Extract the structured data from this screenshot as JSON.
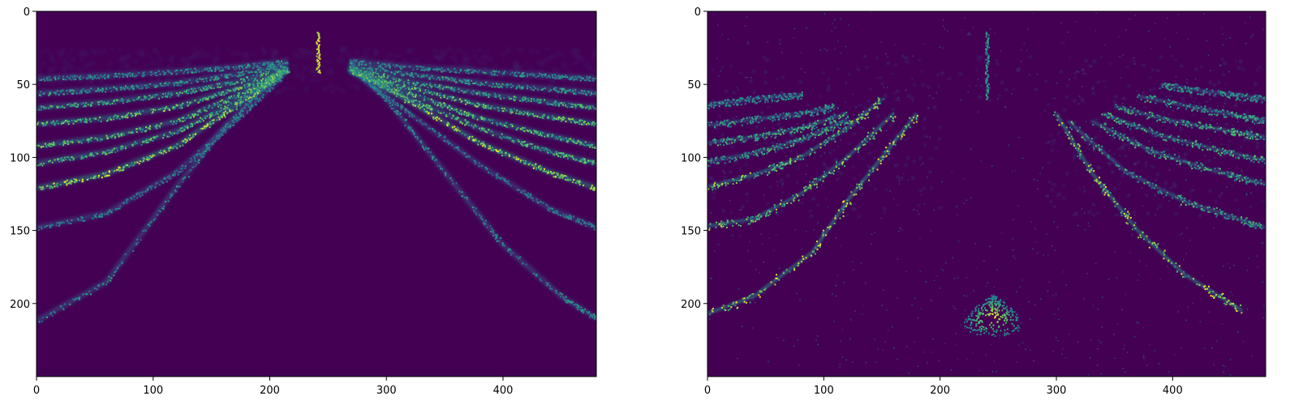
{
  "chart_data": [
    {
      "type": "heatmap",
      "colormap": "viridis",
      "background_color": "#440154",
      "bright_color": "#fde725",
      "mid_color": "#21918c",
      "xlim": [
        0,
        480
      ],
      "ylim": [
        250,
        0
      ],
      "y_inverted": true,
      "xticks": [
        0,
        100,
        200,
        300,
        400
      ],
      "yticks": [
        0,
        50,
        100,
        150,
        200
      ],
      "image_description": "dense smooth arcs radiating from top center; near-vertical bright streak at x≈240, y 15–40",
      "streak": {
        "x": 241,
        "y0": 14,
        "y1": 42
      },
      "arcs": [
        {
          "side": "left",
          "points": [
            [
              0,
              212
            ],
            [
              60,
              185
            ],
            [
              120,
              120
            ],
            [
              160,
              80
            ],
            [
              190,
              55
            ],
            [
              205,
              45
            ]
          ],
          "intensity": 0.55
        },
        {
          "side": "right",
          "points": [
            [
              280,
              45
            ],
            [
              300,
              60
            ],
            [
              340,
              100
            ],
            [
              400,
              160
            ],
            [
              450,
              195
            ],
            [
              480,
              210
            ]
          ],
          "intensity": 0.55
        },
        {
          "side": "left",
          "points": [
            [
              0,
              148
            ],
            [
              60,
              138
            ],
            [
              120,
              110
            ],
            [
              170,
              75
            ],
            [
              210,
              45
            ]
          ],
          "intensity": 0.5
        },
        {
          "side": "right",
          "points": [
            [
              270,
              40
            ],
            [
              320,
              70
            ],
            [
              380,
              105
            ],
            [
              440,
              135
            ],
            [
              480,
              148
            ]
          ],
          "intensity": 0.5
        },
        {
          "side": "left",
          "points": [
            [
              0,
              121
            ],
            [
              60,
              111
            ],
            [
              120,
              92
            ],
            [
              170,
              65
            ],
            [
              215,
              40
            ]
          ],
          "intensity": 0.95
        },
        {
          "side": "right",
          "points": [
            [
              268,
              38
            ],
            [
              320,
              62
            ],
            [
              380,
              90
            ],
            [
              440,
              110
            ],
            [
              480,
              121
            ]
          ],
          "intensity": 0.95
        },
        {
          "side": "left",
          "points": [
            [
              0,
              104
            ],
            [
              60,
              96
            ],
            [
              120,
              82
            ],
            [
              170,
              62
            ],
            [
              215,
              40
            ]
          ],
          "intensity": 0.75
        },
        {
          "side": "right",
          "points": [
            [
              268,
              40
            ],
            [
              320,
              60
            ],
            [
              380,
              80
            ],
            [
              440,
              96
            ],
            [
              480,
              104
            ]
          ],
          "intensity": 0.75
        },
        {
          "side": "left",
          "points": [
            [
              0,
              92
            ],
            [
              60,
              86
            ],
            [
              120,
              75
            ],
            [
              170,
              58
            ],
            [
              215,
              40
            ]
          ],
          "intensity": 0.8
        },
        {
          "side": "right",
          "points": [
            [
              268,
              40
            ],
            [
              320,
              56
            ],
            [
              380,
              73
            ],
            [
              440,
              85
            ],
            [
              480,
              92
            ]
          ],
          "intensity": 0.8
        },
        {
          "side": "left",
          "points": [
            [
              0,
              77
            ],
            [
              60,
              73
            ],
            [
              120,
              65
            ],
            [
              170,
              53
            ],
            [
              215,
              40
            ]
          ],
          "intensity": 0.8
        },
        {
          "side": "right",
          "points": [
            [
              268,
              40
            ],
            [
              320,
              52
            ],
            [
              380,
              64
            ],
            [
              440,
              72
            ],
            [
              480,
              77
            ]
          ],
          "intensity": 0.8
        },
        {
          "side": "left",
          "points": [
            [
              0,
              66
            ],
            [
              60,
              62
            ],
            [
              120,
              56
            ],
            [
              170,
              48
            ],
            [
              215,
              38
            ]
          ],
          "intensity": 0.7
        },
        {
          "side": "right",
          "points": [
            [
              268,
              38
            ],
            [
              320,
              48
            ],
            [
              380,
              56
            ],
            [
              440,
              62
            ],
            [
              480,
              66
            ]
          ],
          "intensity": 0.7
        },
        {
          "side": "left",
          "points": [
            [
              0,
              56
            ],
            [
              60,
              53
            ],
            [
              120,
              49
            ],
            [
              170,
              43
            ],
            [
              215,
              36
            ]
          ],
          "intensity": 0.6
        },
        {
          "side": "right",
          "points": [
            [
              268,
              36
            ],
            [
              320,
              43
            ],
            [
              380,
              49
            ],
            [
              440,
              53
            ],
            [
              480,
              56
            ]
          ],
          "intensity": 0.6
        },
        {
          "side": "left",
          "points": [
            [
              0,
              46
            ],
            [
              60,
              44
            ],
            [
              120,
              41
            ],
            [
              170,
              38
            ],
            [
              215,
              34
            ]
          ],
          "intensity": 0.55
        },
        {
          "side": "right",
          "points": [
            [
              268,
              34
            ],
            [
              320,
              38
            ],
            [
              380,
              41
            ],
            [
              440,
              44
            ],
            [
              480,
              46
            ]
          ],
          "intensity": 0.55
        }
      ],
      "haze": {
        "y0": 25,
        "y1": 55,
        "intensity": 0.25
      }
    },
    {
      "type": "heatmap",
      "colormap": "viridis",
      "background_color": "#440154",
      "bright_color": "#fde725",
      "mid_color": "#21918c",
      "xlim": [
        0,
        480
      ],
      "ylim": [
        250,
        0
      ],
      "y_inverted": true,
      "xticks": [
        0,
        100,
        200,
        300,
        400
      ],
      "yticks": [
        0,
        50,
        100,
        150,
        200
      ],
      "image_description": "noisy speckled reconstruction of the same arcs; bright blob near x≈245, y≈210",
      "streak": {
        "x": 240,
        "y0": 14,
        "y1": 60
      },
      "blob": {
        "x": 245,
        "y": 208,
        "rx": 22,
        "ry": 14
      },
      "arcs": [
        {
          "side": "left",
          "points": [
            [
              0,
              207
            ],
            [
              40,
              195
            ],
            [
              90,
              165
            ],
            [
              120,
              130
            ],
            [
              150,
              100
            ],
            [
              180,
              70
            ]
          ],
          "intensity": 0.95
        },
        {
          "side": "right",
          "points": [
            [
              300,
              70
            ],
            [
              330,
              110
            ],
            [
              370,
              150
            ],
            [
              410,
              180
            ],
            [
              460,
              205
            ]
          ],
          "intensity": 0.95
        },
        {
          "side": "left",
          "points": [
            [
              0,
              147
            ],
            [
              40,
              142
            ],
            [
              80,
              125
            ],
            [
              120,
              100
            ],
            [
              160,
              70
            ]
          ],
          "intensity": 0.85
        },
        {
          "side": "right",
          "points": [
            [
              310,
              75
            ],
            [
              360,
              110
            ],
            [
              410,
              130
            ],
            [
              460,
              143
            ],
            [
              480,
              148
            ]
          ],
          "intensity": 0.7
        },
        {
          "side": "left",
          "points": [
            [
              0,
              120
            ],
            [
              40,
              112
            ],
            [
              80,
              100
            ],
            [
              120,
              80
            ],
            [
              150,
              60
            ]
          ],
          "intensity": 0.85
        },
        {
          "side": "right",
          "points": [
            [
              330,
              75
            ],
            [
              380,
              95
            ],
            [
              430,
              108
            ],
            [
              480,
              118
            ]
          ],
          "intensity": 0.7
        },
        {
          "side": "left",
          "points": [
            [
              0,
              103
            ],
            [
              40,
              97
            ],
            [
              80,
              88
            ],
            [
              120,
              74
            ]
          ],
          "intensity": 0.7
        },
        {
          "side": "right",
          "points": [
            [
              340,
              70
            ],
            [
              390,
              85
            ],
            [
              440,
              95
            ],
            [
              480,
              102
            ]
          ],
          "intensity": 0.7
        },
        {
          "side": "left",
          "points": [
            [
              0,
              90
            ],
            [
              40,
              86
            ],
            [
              80,
              80
            ],
            [
              120,
              70
            ]
          ],
          "intensity": 0.7
        },
        {
          "side": "right",
          "points": [
            [
              350,
              65
            ],
            [
              400,
              75
            ],
            [
              450,
              82
            ],
            [
              480,
              86
            ]
          ],
          "intensity": 0.7
        },
        {
          "side": "left",
          "points": [
            [
              0,
              78
            ],
            [
              40,
              74
            ],
            [
              80,
              70
            ],
            [
              110,
              65
            ]
          ],
          "intensity": 0.6
        },
        {
          "side": "right",
          "points": [
            [
              370,
              58
            ],
            [
              420,
              66
            ],
            [
              460,
              72
            ],
            [
              480,
              75
            ]
          ],
          "intensity": 0.65
        },
        {
          "side": "left",
          "points": [
            [
              0,
              64
            ],
            [
              40,
              60
            ],
            [
              80,
              57
            ]
          ],
          "intensity": 0.55
        },
        {
          "side": "right",
          "points": [
            [
              390,
              50
            ],
            [
              430,
              55
            ],
            [
              480,
              60
            ]
          ],
          "intensity": 0.6
        }
      ],
      "haze": {
        "y0": 30,
        "y1": 140,
        "intensity": 0.35
      }
    }
  ]
}
